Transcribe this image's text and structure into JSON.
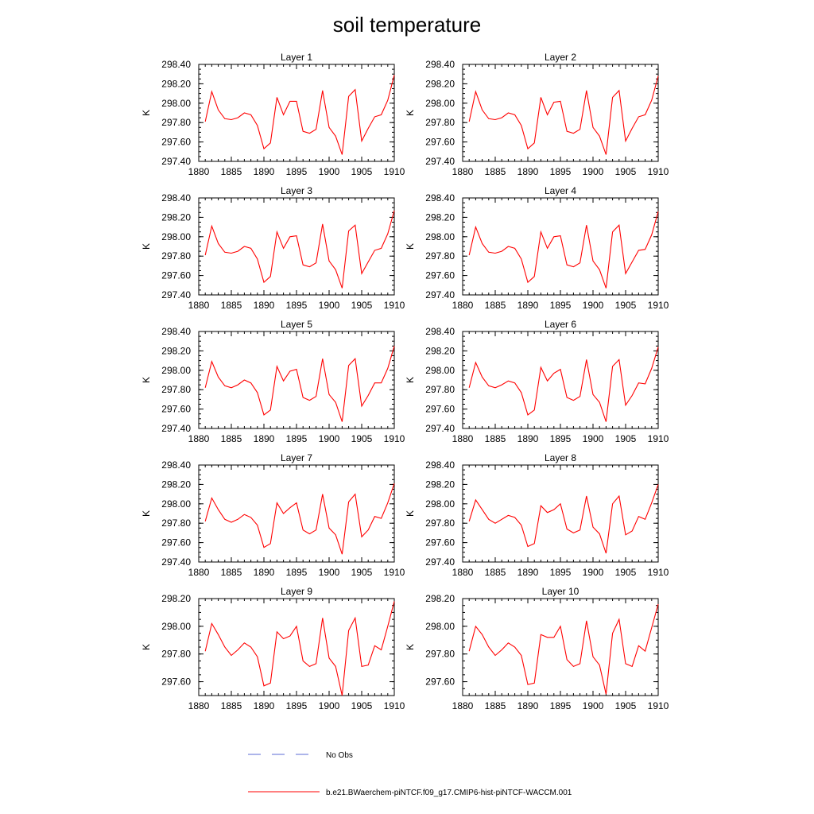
{
  "figure": {
    "title": "soil temperature",
    "legend": [
      {
        "label": "No Obs",
        "color": "#5b6bd6",
        "style": "dashed"
      },
      {
        "label": "b.e21.BWaerchem-piNTCF.f09_g17.CMIP6-hist-piNTCF-WACCM.001",
        "color": "#ff0000",
        "style": "solid"
      }
    ]
  },
  "chart_data": [
    {
      "type": "line",
      "title": "Layer 1",
      "ylabel": "K",
      "xlim": [
        1880,
        1910
      ],
      "ylim": [
        297.4,
        298.4
      ],
      "xticks": [
        "1880",
        "1885",
        "1890",
        "1895",
        "1900",
        "1905",
        "1910"
      ],
      "yticks": [
        "297.40",
        "297.60",
        "297.80",
        "298.00",
        "298.20",
        "298.40"
      ],
      "x": [
        1881,
        1882,
        1883,
        1884,
        1885,
        1886,
        1887,
        1888,
        1889,
        1890,
        1891,
        1892,
        1893,
        1894,
        1895,
        1896,
        1897,
        1898,
        1899,
        1900,
        1901,
        1902,
        1903,
        1904,
        1905,
        1906,
        1907,
        1908,
        1909,
        1910
      ],
      "series": [
        {
          "name": "b.e21.BWaerchem-piNTCF.f09_g17.CMIP6-hist-piNTCF-WACCM.001",
          "color": "#ff0000",
          "values": [
            297.81,
            298.12,
            297.93,
            297.84,
            297.83,
            297.85,
            297.9,
            297.88,
            297.77,
            297.53,
            297.59,
            298.06,
            297.88,
            298.02,
            298.02,
            297.71,
            297.69,
            297.73,
            298.13,
            297.75,
            297.66,
            297.47,
            298.07,
            298.14,
            297.61,
            297.74,
            297.86,
            297.88,
            298.03,
            298.29
          ]
        }
      ]
    },
    {
      "type": "line",
      "title": "Layer 2",
      "ylabel": "K",
      "xlim": [
        1880,
        1910
      ],
      "ylim": [
        297.4,
        298.4
      ],
      "xticks": [
        "1880",
        "1885",
        "1890",
        "1895",
        "1900",
        "1905",
        "1910"
      ],
      "yticks": [
        "297.40",
        "297.60",
        "297.80",
        "298.00",
        "298.20",
        "298.40"
      ],
      "x": [
        1881,
        1882,
        1883,
        1884,
        1885,
        1886,
        1887,
        1888,
        1889,
        1890,
        1891,
        1892,
        1893,
        1894,
        1895,
        1896,
        1897,
        1898,
        1899,
        1900,
        1901,
        1902,
        1903,
        1904,
        1905,
        1906,
        1907,
        1908,
        1909,
        1910
      ],
      "series": [
        {
          "name": "b.e21.BWaerchem-piNTCF.f09_g17.CMIP6-hist-piNTCF-WACCM.001",
          "color": "#ff0000",
          "values": [
            297.81,
            298.12,
            297.93,
            297.84,
            297.83,
            297.85,
            297.9,
            297.88,
            297.77,
            297.53,
            297.59,
            298.06,
            297.88,
            298.01,
            298.02,
            297.71,
            297.69,
            297.73,
            298.13,
            297.75,
            297.66,
            297.47,
            298.06,
            298.13,
            297.61,
            297.74,
            297.86,
            297.88,
            298.03,
            298.28
          ]
        }
      ]
    },
    {
      "type": "line",
      "title": "Layer 3",
      "ylabel": "K",
      "xlim": [
        1880,
        1910
      ],
      "ylim": [
        297.4,
        298.4
      ],
      "xticks": [
        "1880",
        "1885",
        "1890",
        "1895",
        "1900",
        "1905",
        "1910"
      ],
      "yticks": [
        "297.40",
        "297.60",
        "297.80",
        "298.00",
        "298.20",
        "298.40"
      ],
      "x": [
        1881,
        1882,
        1883,
        1884,
        1885,
        1886,
        1887,
        1888,
        1889,
        1890,
        1891,
        1892,
        1893,
        1894,
        1895,
        1896,
        1897,
        1898,
        1899,
        1900,
        1901,
        1902,
        1903,
        1904,
        1905,
        1906,
        1907,
        1908,
        1909,
        1910
      ],
      "series": [
        {
          "name": "b.e21.BWaerchem-piNTCF.f09_g17.CMIP6-hist-piNTCF-WACCM.001",
          "color": "#ff0000",
          "values": [
            297.81,
            298.11,
            297.93,
            297.84,
            297.83,
            297.85,
            297.9,
            297.88,
            297.77,
            297.53,
            297.59,
            298.05,
            297.88,
            298.0,
            298.01,
            297.71,
            297.69,
            297.73,
            298.13,
            297.75,
            297.66,
            297.47,
            298.06,
            298.12,
            297.62,
            297.74,
            297.86,
            297.88,
            298.03,
            298.27
          ]
        }
      ]
    },
    {
      "type": "line",
      "title": "Layer 4",
      "ylabel": "K",
      "xlim": [
        1880,
        1910
      ],
      "ylim": [
        297.4,
        298.4
      ],
      "xticks": [
        "1880",
        "1885",
        "1890",
        "1895",
        "1900",
        "1905",
        "1910"
      ],
      "yticks": [
        "297.40",
        "297.60",
        "297.80",
        "298.00",
        "298.20",
        "298.40"
      ],
      "x": [
        1881,
        1882,
        1883,
        1884,
        1885,
        1886,
        1887,
        1888,
        1889,
        1890,
        1891,
        1892,
        1893,
        1894,
        1895,
        1896,
        1897,
        1898,
        1899,
        1900,
        1901,
        1902,
        1903,
        1904,
        1905,
        1906,
        1907,
        1908,
        1909,
        1910
      ],
      "series": [
        {
          "name": "b.e21.BWaerchem-piNTCF.f09_g17.CMIP6-hist-piNTCF-WACCM.001",
          "color": "#ff0000",
          "values": [
            297.81,
            298.1,
            297.93,
            297.84,
            297.83,
            297.85,
            297.9,
            297.88,
            297.77,
            297.53,
            297.59,
            298.05,
            297.88,
            298.0,
            298.01,
            297.71,
            297.69,
            297.73,
            298.12,
            297.75,
            297.66,
            297.47,
            298.05,
            298.12,
            297.62,
            297.74,
            297.86,
            297.87,
            298.02,
            298.26
          ]
        }
      ]
    },
    {
      "type": "line",
      "title": "Layer 5",
      "ylabel": "K",
      "xlim": [
        1880,
        1910
      ],
      "ylim": [
        297.4,
        298.4
      ],
      "xticks": [
        "1880",
        "1885",
        "1890",
        "1895",
        "1900",
        "1905",
        "1910"
      ],
      "yticks": [
        "297.40",
        "297.60",
        "297.80",
        "298.00",
        "298.20",
        "298.40"
      ],
      "x": [
        1881,
        1882,
        1883,
        1884,
        1885,
        1886,
        1887,
        1888,
        1889,
        1890,
        1891,
        1892,
        1893,
        1894,
        1895,
        1896,
        1897,
        1898,
        1899,
        1900,
        1901,
        1902,
        1903,
        1904,
        1905,
        1906,
        1907,
        1908,
        1909,
        1910
      ],
      "series": [
        {
          "name": "b.e21.BWaerchem-piNTCF.f09_g17.CMIP6-hist-piNTCF-WACCM.001",
          "color": "#ff0000",
          "values": [
            297.82,
            298.09,
            297.93,
            297.84,
            297.82,
            297.85,
            297.9,
            297.87,
            297.77,
            297.54,
            297.59,
            298.04,
            297.89,
            297.99,
            298.01,
            297.72,
            297.69,
            297.73,
            298.12,
            297.75,
            297.67,
            297.47,
            298.05,
            298.12,
            297.63,
            297.74,
            297.87,
            297.87,
            298.02,
            298.25
          ]
        }
      ]
    },
    {
      "type": "line",
      "title": "Layer 6",
      "ylabel": "K",
      "xlim": [
        1880,
        1910
      ],
      "ylim": [
        297.4,
        298.4
      ],
      "xticks": [
        "1880",
        "1885",
        "1890",
        "1895",
        "1900",
        "1905",
        "1910"
      ],
      "yticks": [
        "297.40",
        "297.60",
        "297.80",
        "298.00",
        "298.20",
        "298.40"
      ],
      "x": [
        1881,
        1882,
        1883,
        1884,
        1885,
        1886,
        1887,
        1888,
        1889,
        1890,
        1891,
        1892,
        1893,
        1894,
        1895,
        1896,
        1897,
        1898,
        1899,
        1900,
        1901,
        1902,
        1903,
        1904,
        1905,
        1906,
        1907,
        1908,
        1909,
        1910
      ],
      "series": [
        {
          "name": "b.e21.BWaerchem-piNTCF.f09_g17.CMIP6-hist-piNTCF-WACCM.001",
          "color": "#ff0000",
          "values": [
            297.82,
            298.08,
            297.93,
            297.84,
            297.82,
            297.85,
            297.89,
            297.87,
            297.77,
            297.54,
            297.59,
            298.03,
            297.89,
            297.97,
            298.01,
            297.72,
            297.69,
            297.73,
            298.11,
            297.75,
            297.67,
            297.47,
            298.04,
            298.11,
            297.64,
            297.74,
            297.87,
            297.86,
            298.02,
            298.24
          ]
        }
      ]
    },
    {
      "type": "line",
      "title": "Layer 7",
      "ylabel": "K",
      "xlim": [
        1880,
        1910
      ],
      "ylim": [
        297.4,
        298.4
      ],
      "xticks": [
        "1880",
        "1885",
        "1890",
        "1895",
        "1900",
        "1905",
        "1910"
      ],
      "yticks": [
        "297.40",
        "297.60",
        "297.80",
        "298.00",
        "298.20",
        "298.40"
      ],
      "x": [
        1881,
        1882,
        1883,
        1884,
        1885,
        1886,
        1887,
        1888,
        1889,
        1890,
        1891,
        1892,
        1893,
        1894,
        1895,
        1896,
        1897,
        1898,
        1899,
        1900,
        1901,
        1902,
        1903,
        1904,
        1905,
        1906,
        1907,
        1908,
        1909,
        1910
      ],
      "series": [
        {
          "name": "b.e21.BWaerchem-piNTCF.f09_g17.CMIP6-hist-piNTCF-WACCM.001",
          "color": "#ff0000",
          "values": [
            297.82,
            298.06,
            297.94,
            297.84,
            297.81,
            297.84,
            297.89,
            297.86,
            297.78,
            297.55,
            297.59,
            298.01,
            297.9,
            297.96,
            298.01,
            297.73,
            297.69,
            297.73,
            298.1,
            297.75,
            297.68,
            297.48,
            298.02,
            298.1,
            297.66,
            297.73,
            297.87,
            297.85,
            298.01,
            298.21
          ]
        }
      ]
    },
    {
      "type": "line",
      "title": "Layer 8",
      "ylabel": "K",
      "xlim": [
        1880,
        1910
      ],
      "ylim": [
        297.4,
        298.4
      ],
      "xticks": [
        "1880",
        "1885",
        "1890",
        "1895",
        "1900",
        "1905",
        "1910"
      ],
      "yticks": [
        "297.40",
        "297.60",
        "297.80",
        "298.00",
        "298.20",
        "298.40"
      ],
      "x": [
        1881,
        1882,
        1883,
        1884,
        1885,
        1886,
        1887,
        1888,
        1889,
        1890,
        1891,
        1892,
        1893,
        1894,
        1895,
        1896,
        1897,
        1898,
        1899,
        1900,
        1901,
        1902,
        1903,
        1904,
        1905,
        1906,
        1907,
        1908,
        1909,
        1910
      ],
      "series": [
        {
          "name": "b.e21.BWaerchem-piNTCF.f09_g17.CMIP6-hist-piNTCF-WACCM.001",
          "color": "#ff0000",
          "values": [
            297.82,
            298.04,
            297.94,
            297.84,
            297.8,
            297.84,
            297.88,
            297.86,
            297.78,
            297.56,
            297.59,
            297.98,
            297.91,
            297.94,
            298.0,
            297.74,
            297.7,
            297.73,
            298.08,
            297.76,
            297.69,
            297.49,
            298.0,
            298.08,
            297.68,
            297.72,
            297.87,
            297.84,
            298.01,
            298.2
          ]
        }
      ]
    },
    {
      "type": "line",
      "title": "Layer 9",
      "ylabel": "K",
      "xlim": [
        1880,
        1910
      ],
      "ylim": [
        297.5,
        298.2
      ],
      "xticks": [
        "1880",
        "1885",
        "1890",
        "1895",
        "1900",
        "1905",
        "1910"
      ],
      "yticks": [
        "297.60",
        "297.80",
        "298.00",
        "298.20"
      ],
      "x": [
        1881,
        1882,
        1883,
        1884,
        1885,
        1886,
        1887,
        1888,
        1889,
        1890,
        1891,
        1892,
        1893,
        1894,
        1895,
        1896,
        1897,
        1898,
        1899,
        1900,
        1901,
        1902,
        1903,
        1904,
        1905,
        1906,
        1907,
        1908,
        1909,
        1910
      ],
      "series": [
        {
          "name": "b.e21.BWaerchem-piNTCF.f09_g17.CMIP6-hist-piNTCF-WACCM.001",
          "color": "#ff0000",
          "values": [
            297.82,
            298.02,
            297.94,
            297.85,
            297.79,
            297.83,
            297.88,
            297.85,
            297.78,
            297.57,
            297.59,
            297.96,
            297.91,
            297.93,
            298.0,
            297.75,
            297.71,
            297.73,
            298.06,
            297.77,
            297.71,
            297.5,
            297.97,
            298.06,
            297.71,
            297.72,
            297.86,
            297.83,
            298.0,
            298.18
          ]
        }
      ]
    },
    {
      "type": "line",
      "title": "Layer 10",
      "ylabel": "K",
      "xlim": [
        1880,
        1910
      ],
      "ylim": [
        297.5,
        298.2
      ],
      "xticks": [
        "1880",
        "1885",
        "1890",
        "1895",
        "1900",
        "1905",
        "1910"
      ],
      "yticks": [
        "297.60",
        "297.80",
        "298.00",
        "298.20"
      ],
      "x": [
        1881,
        1882,
        1883,
        1884,
        1885,
        1886,
        1887,
        1888,
        1889,
        1890,
        1891,
        1892,
        1893,
        1894,
        1895,
        1896,
        1897,
        1898,
        1899,
        1900,
        1901,
        1902,
        1903,
        1904,
        1905,
        1906,
        1907,
        1908,
        1909,
        1910
      ],
      "series": [
        {
          "name": "b.e21.BWaerchem-piNTCF.f09_g17.CMIP6-hist-piNTCF-WACCM.001",
          "color": "#ff0000",
          "values": [
            297.82,
            298.0,
            297.94,
            297.85,
            297.79,
            297.83,
            297.88,
            297.85,
            297.79,
            297.58,
            297.59,
            297.94,
            297.92,
            297.92,
            298.0,
            297.76,
            297.71,
            297.73,
            298.04,
            297.78,
            297.72,
            297.51,
            297.95,
            298.05,
            297.73,
            297.71,
            297.86,
            297.82,
            297.99,
            298.16
          ]
        }
      ]
    }
  ]
}
